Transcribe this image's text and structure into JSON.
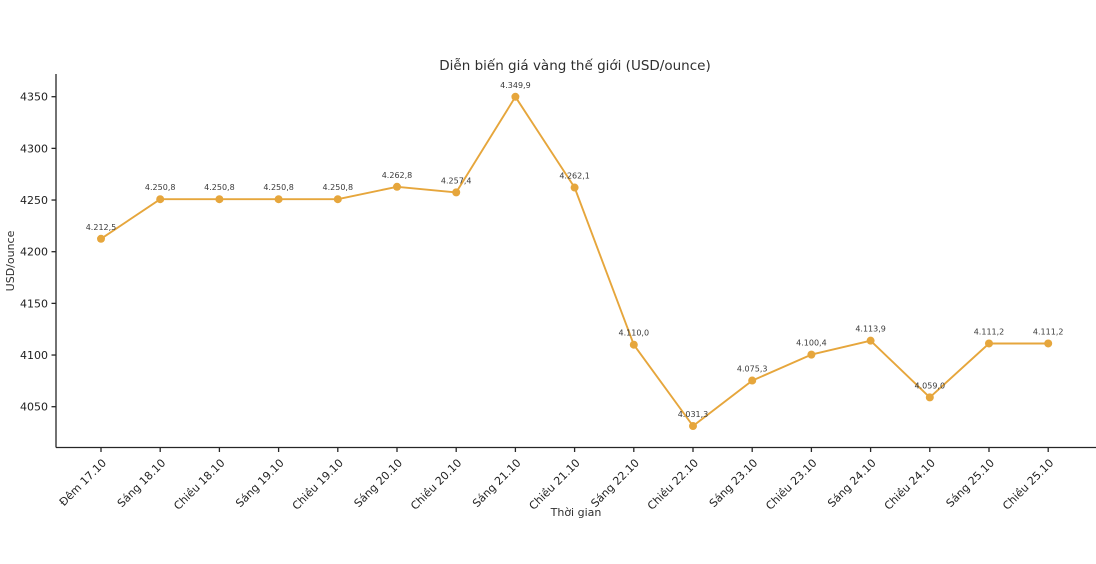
{
  "chart_data": {
    "type": "line",
    "title": "Diễn biến giá vàng thế giới (USD/ounce)",
    "xlabel": "Thời gian",
    "ylabel": "USD/ounce",
    "categories": [
      "Đêm 17.10",
      "Sáng 18.10",
      "Chiều 18.10",
      "Sáng 19.10",
      "Chiều 19.10",
      "Sáng 20.10",
      "Chiều 20.10",
      "Sáng 21.10",
      "Chiều 21.10",
      "Sáng 22.10",
      "Chiều 22.10",
      "Sáng 23.10",
      "Chiều 23.10",
      "Sáng 24.10",
      "Chiều 24.10",
      "Sáng 25.10",
      "Chiều 25.10"
    ],
    "values": [
      4212.5,
      4250.8,
      4250.8,
      4250.8,
      4250.8,
      4262.8,
      4257.4,
      4349.9,
      4262.1,
      4110.0,
      4031.3,
      4075.3,
      4100.4,
      4113.9,
      4059.0,
      4111.2,
      4111.2
    ],
    "point_labels": [
      "4.212,5",
      "4.250,8",
      "4.250,8",
      "4.250,8",
      "4.250,8",
      "4.262,8",
      "4.257,4",
      "4.349,9",
      "4.262,1",
      "4.110,0",
      "4.031,3",
      "4.075,3",
      "4.100,4",
      "4.113,9",
      "4.059,0",
      "4.111,2",
      "4.111,2"
    ],
    "yticks": [
      4050,
      4100,
      4150,
      4200,
      4250,
      4300,
      4350
    ],
    "ylim": [
      4011,
      4372
    ],
    "grid": false,
    "legend": "none",
    "line_color": "#e6a63c",
    "axis_color": "#262626",
    "marker": "circle"
  }
}
